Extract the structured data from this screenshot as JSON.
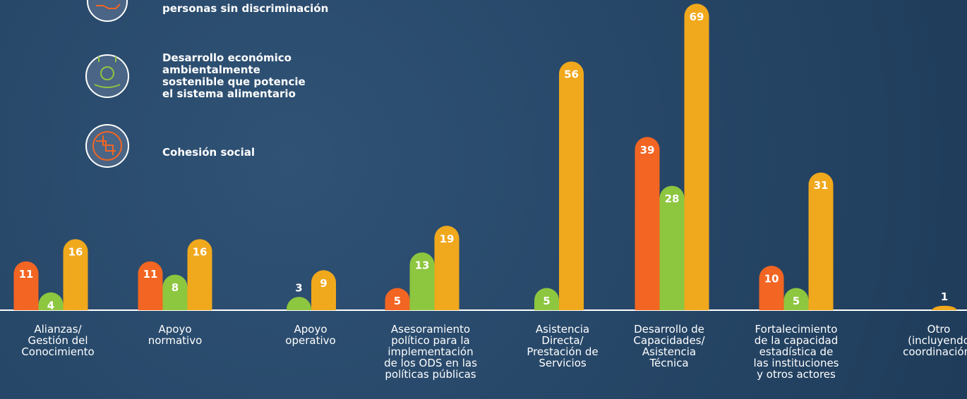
{
  "chart_data": {
    "type": "bar",
    "categories": [
      "Alianzas/\nGestión del\nConocimiento",
      "Apoyo\nnormativo",
      "Apoyo\noperativo",
      "Asesoramiento\npolítico para la\nimplementación\nde los ODS en las\npolíticas públicas",
      "Asistencia\nDirecta/\nPrestación de\nServicios",
      "Desarrollo de\nCapacidades/\nAsistencia\nTécnica",
      "Fortalecimiento\nde la capacidad\nestadística de\nlas instituciones\ny otros actores",
      "Otro\n(incluyendo\ncoordinación)"
    ],
    "series": [
      {
        "name": "personas sin discriminación",
        "color": "#f26522",
        "values": [
          11,
          11,
          null,
          5,
          null,
          39,
          10,
          null
        ]
      },
      {
        "name": "Desarrollo económico\nambientalmente\nsostenible que potencie\nel sistema alimentario",
        "color": "#8dc63f",
        "values": [
          4,
          8,
          3,
          13,
          5,
          28,
          5,
          null
        ]
      },
      {
        "name": "Cohesión social",
        "color": "#f0a81c",
        "values": [
          16,
          16,
          9,
          19,
          56,
          69,
          31,
          1
        ]
      }
    ]
  }
}
